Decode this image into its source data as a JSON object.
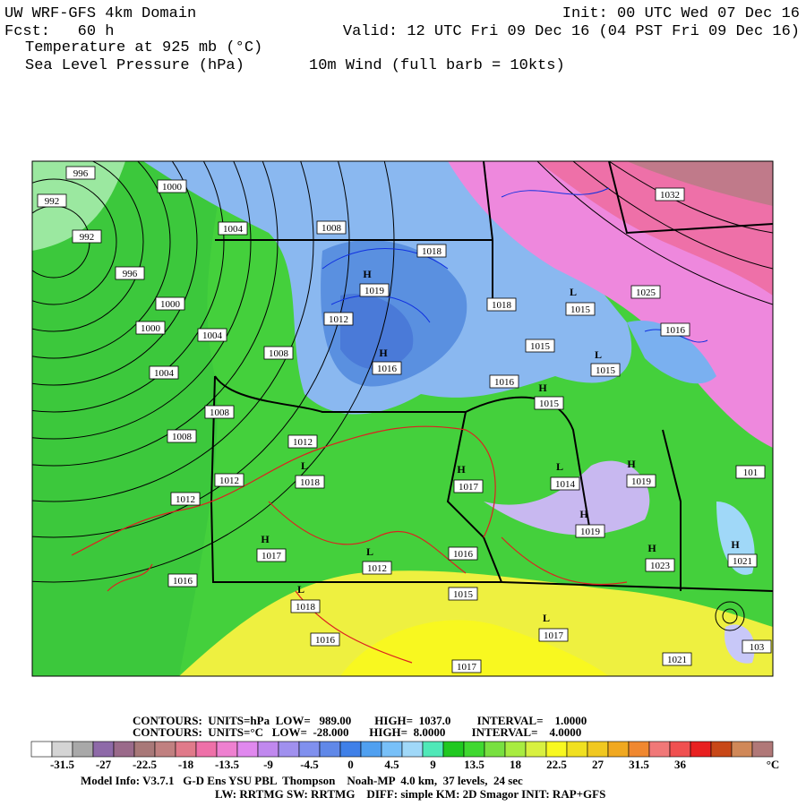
{
  "header": {
    "title": "UW WRF-GFS 4km Domain",
    "forecast": "Fcst:   60 h",
    "field": "Temperature at 925 mb (°C)",
    "pressure": "Sea Level Pressure (hPa)",
    "wind": "10m Wind (full barb = 10kts)",
    "init": "Init: 00 UTC Wed 07 Dec 16",
    "valid": "Valid: 12 UTC Fri 09 Dec 16 (04 PST Fri 09 Dec 16)"
  },
  "map": {
    "pressure_labels": [
      "996",
      "992",
      "992",
      "996",
      "1000",
      "1000",
      "1000",
      "1004",
      "1004",
      "1004",
      "1008",
      "1008",
      "1008",
      "1008",
      "1012",
      "1012",
      "1012",
      "1016",
      "1018",
      "1019",
      "1012",
      "1016",
      "1018",
      "1015",
      "1015",
      "1015",
      "1016",
      "1015",
      "1032",
      "1025",
      "1016",
      "1018",
      "1017",
      "1014",
      "1019",
      "1019",
      "1017",
      "1012",
      "1016",
      "1023",
      "1021",
      "1015",
      "1018",
      "1016",
      "1017",
      "1017",
      "1021",
      "101",
      "103"
    ],
    "centers": [
      "H",
      "H",
      "L",
      "L",
      "H",
      "L",
      "H",
      "L",
      "H",
      "H",
      "H",
      "L",
      "H",
      "H",
      "L",
      "L"
    ]
  },
  "footer": {
    "contours_slp": "CONTOURS:  UNITS=hPa  LOW=   989.00        HIGH=  1037.0         INTERVAL=    1.0000",
    "contours_temp": "CONTOURS:  UNITS=°C   LOW=  -28.000       HIGH=  8.0000         INTERVAL=    4.0000",
    "model_info": "Model Info: V3.7.1   G-D Ens YSU PBL  Thompson    Noah-MP  4.0 km,  37 levels,  24 sec",
    "physics": "LW: RRTMG SW: RRTMG    DIFF: simple KM: 2D Smagor INIT: RAP+GFS"
  },
  "colorbar": {
    "labels": [
      "-31.5",
      "-27",
      "-22.5",
      "-18",
      "-13.5",
      "-9",
      "-4.5",
      "0",
      "4.5",
      "9",
      "13.5",
      "18",
      "22.5",
      "27",
      "31.5",
      "36"
    ],
    "unit": "°C",
    "colors": [
      "#ffffff",
      "#d4d4d4",
      "#a8a8a8",
      "#8e6aa8",
      "#9a6a8a",
      "#a87878",
      "#c08080",
      "#e07a8a",
      "#ee70a8",
      "#ee80d0",
      "#e088ee",
      "#c088ee",
      "#a090ee",
      "#8090ee",
      "#6088e8",
      "#4080e8",
      "#50a0f0",
      "#78c0f8",
      "#a0d8f8",
      "#50e8b8",
      "#20c820",
      "#40d830",
      "#78e040",
      "#a8ec40",
      "#d8f040",
      "#f8f820",
      "#f0e020",
      "#f0c820",
      "#f0a820",
      "#f08830",
      "#f07878",
      "#f05050",
      "#e82020",
      "#c84818",
      "#d08858",
      "#b07878"
    ]
  }
}
